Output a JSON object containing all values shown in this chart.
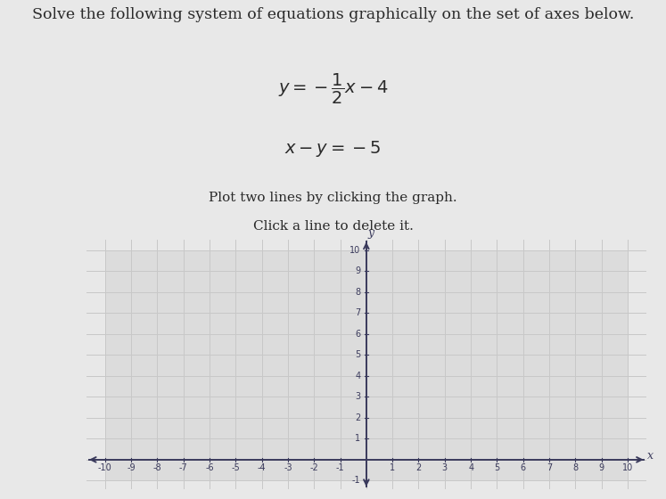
{
  "title": "Solve the following system of equations graphically on the set of axes below.",
  "instruction1": "Plot two lines by clicking the graph.",
  "instruction2": "Click a line to delete it.",
  "xlim": [
    -10,
    10
  ],
  "ylim_bottom": -1,
  "ylim_top": 10,
  "grid_color": "#c8c8c8",
  "grid_bg": "#dcdcdc",
  "outer_bg": "#e8e8e8",
  "axis_color": "#3a3a5c",
  "tick_label_color": "#3a3a5c",
  "text_color": "#2a2a2a",
  "title_fontsize": 12.5,
  "eq_fontsize": 14,
  "instr_fontsize": 11,
  "tick_fontsize": 7
}
